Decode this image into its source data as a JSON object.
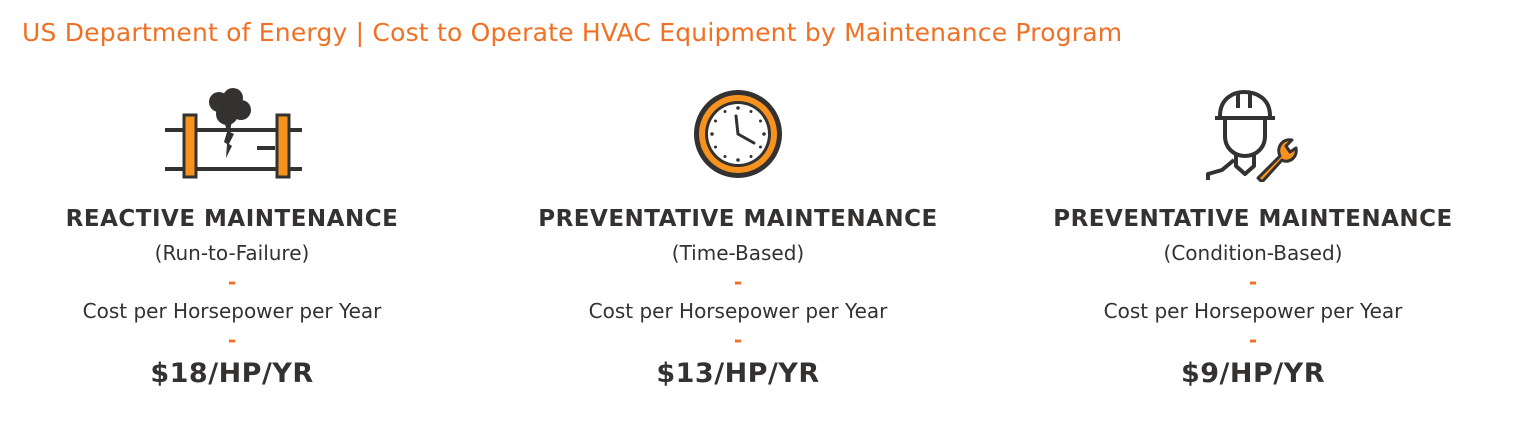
{
  "title": "US Department of Energy | Cost to Operate HVAC Equipment by Maintenance Program",
  "colors": {
    "accent": "#f07024",
    "text": "#333230",
    "icon_orange": "#f7921e"
  },
  "programs": [
    {
      "icon": "burst-pipe-icon",
      "heading": "REACTIVE MAINTENANCE",
      "subtitle": "(Run-to-Failure)",
      "separator": "-",
      "cost_label": "Cost per Horsepower per Year",
      "separator2": "-",
      "price": "$18/HP/YR"
    },
    {
      "icon": "clock-icon",
      "heading": "PREVENTATIVE MAINTENANCE",
      "subtitle": "(Time-Based)",
      "separator": "-",
      "cost_label": "Cost per Horsepower per Year",
      "separator2": "-",
      "price": "$13/HP/YR"
    },
    {
      "icon": "technician-wrench-icon",
      "heading": "PREVENTATIVE MAINTENANCE",
      "subtitle": "(Condition-Based)",
      "separator": "-",
      "cost_label": "Cost per Horsepower per Year",
      "separator2": "-",
      "price": "$9/HP/YR"
    }
  ]
}
